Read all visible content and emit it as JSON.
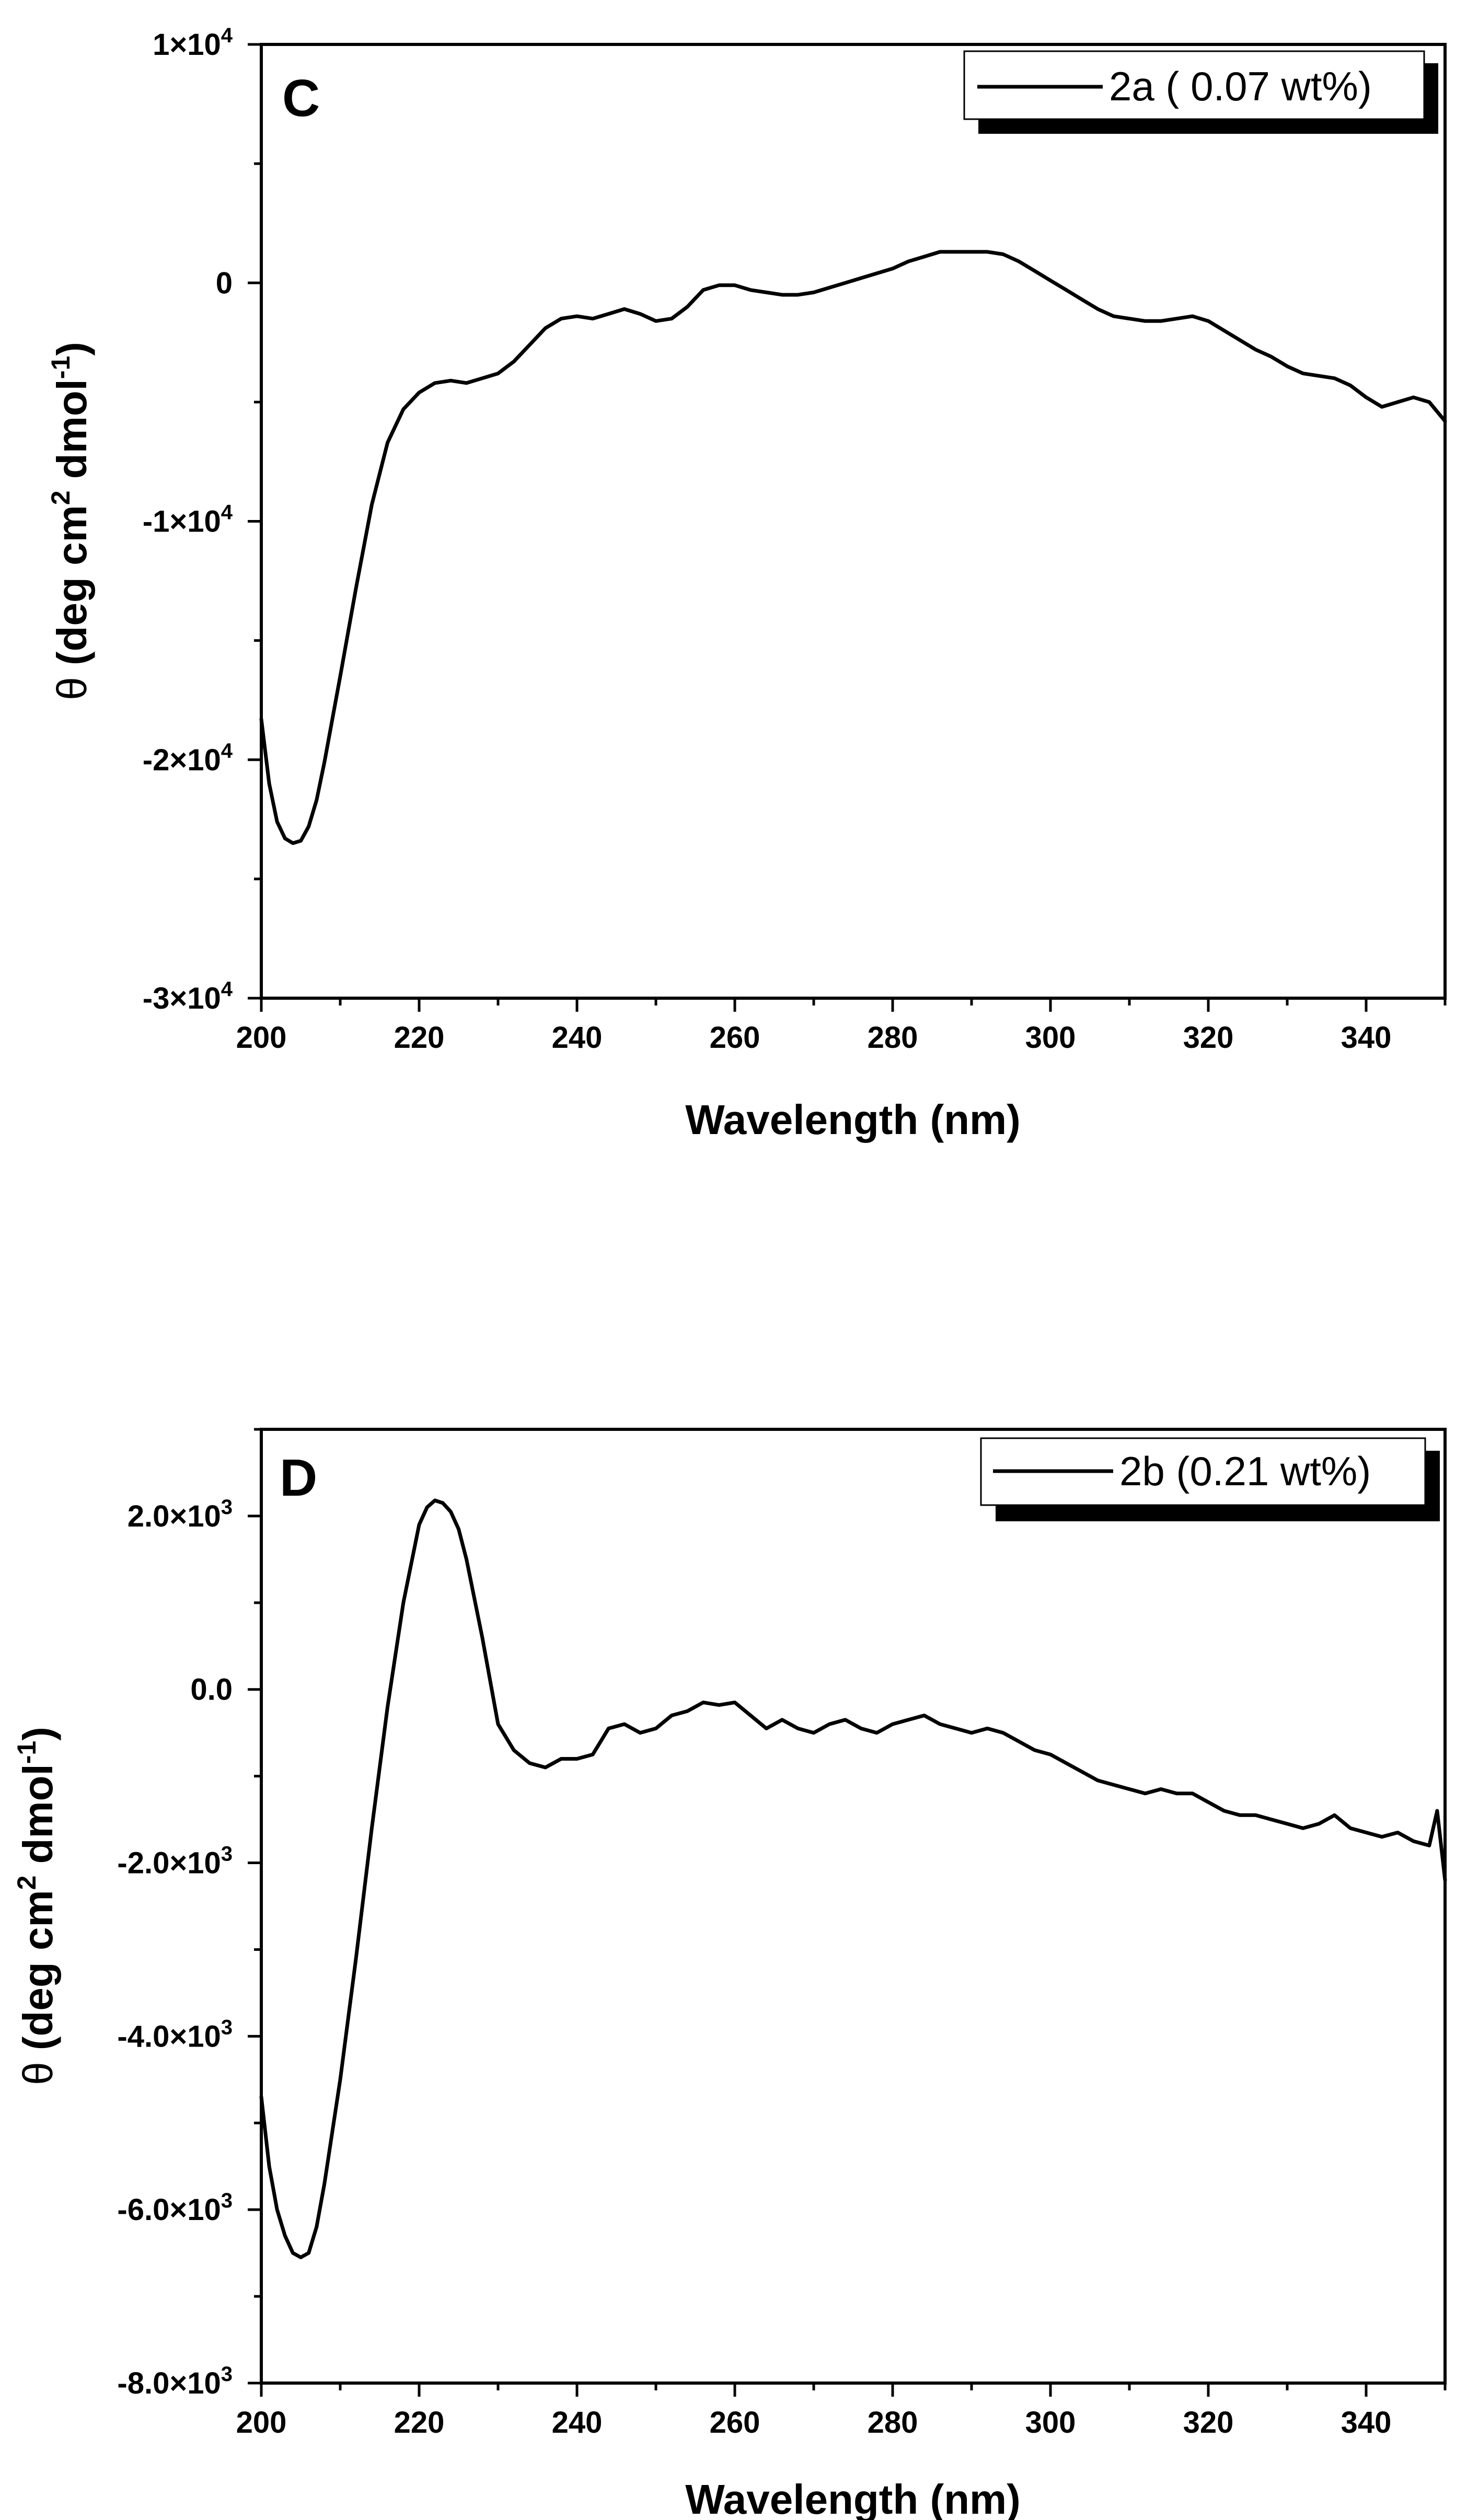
{
  "chart_data": [
    {
      "type": "line",
      "panel_label": "C",
      "title": "",
      "xlabel": "Wavelength (nm)",
      "ylabel": "θ (deg cm² dmol⁻¹)",
      "ylabel_parts": {
        "theta": "θ",
        "open": " (deg cm",
        "sup1": "2",
        "mid": " dmol",
        "sup2": "-1",
        "close": ")"
      },
      "xlim": [
        200,
        350
      ],
      "ylim": [
        -30000,
        10000
      ],
      "x_ticks": [
        {
          "value": 200,
          "label": "200"
        },
        {
          "value": 220,
          "label": "220"
        },
        {
          "value": 240,
          "label": "240"
        },
        {
          "value": 260,
          "label": "260"
        },
        {
          "value": 280,
          "label": "280"
        },
        {
          "value": 300,
          "label": "300"
        },
        {
          "value": 320,
          "label": "320"
        },
        {
          "value": 340,
          "label": "340"
        }
      ],
      "y_ticks": [
        {
          "value": 10000,
          "mantissa": "1",
          "exp": "4",
          "label": "1×10⁴"
        },
        {
          "value": 0,
          "mantissa": "0",
          "exp": "",
          "label": "0"
        },
        {
          "value": -10000,
          "mantissa": "-1",
          "exp": "4",
          "label": "-1×10⁴"
        },
        {
          "value": -20000,
          "mantissa": "-2",
          "exp": "4",
          "label": "-2×10⁴"
        },
        {
          "value": -30000,
          "mantissa": "-3",
          "exp": "4",
          "label": "-3×10⁴"
        }
      ],
      "legend": {
        "position": "top-right",
        "entries": [
          "2a ( 0.07 wt%)"
        ]
      },
      "series": [
        {
          "name": "2a ( 0.07 wt%)",
          "color": "#000000",
          "x": [
            200,
            201,
            202,
            203,
            204,
            205,
            206,
            207,
            208,
            210,
            212,
            214,
            216,
            218,
            220,
            222,
            224,
            226,
            228,
            230,
            232,
            234,
            236,
            238,
            240,
            242,
            244,
            246,
            248,
            250,
            252,
            254,
            256,
            258,
            260,
            262,
            264,
            266,
            268,
            270,
            272,
            274,
            276,
            278,
            280,
            282,
            284,
            286,
            288,
            290,
            292,
            294,
            296,
            298,
            300,
            302,
            304,
            306,
            308,
            310,
            312,
            314,
            316,
            318,
            320,
            322,
            324,
            326,
            328,
            330,
            332,
            334,
            336,
            338,
            340,
            342,
            344,
            346,
            348,
            350
          ],
          "y": [
            -18300,
            -21000,
            -22600,
            -23300,
            -23500,
            -23400,
            -22800,
            -21700,
            -20100,
            -16500,
            -12800,
            -9300,
            -6700,
            -5300,
            -4600,
            -4200,
            -4100,
            -4200,
            -4000,
            -3800,
            -3300,
            -2600,
            -1900,
            -1500,
            -1400,
            -1500,
            -1300,
            -1100,
            -1300,
            -1600,
            -1500,
            -1000,
            -300,
            -100,
            -100,
            -300,
            -400,
            -500,
            -500,
            -400,
            -200,
            0,
            200,
            400,
            600,
            900,
            1100,
            1300,
            1300,
            1300,
            1300,
            1200,
            900,
            500,
            100,
            -300,
            -700,
            -1100,
            -1400,
            -1500,
            -1600,
            -1600,
            -1500,
            -1400,
            -1600,
            -2000,
            -2400,
            -2800,
            -3100,
            -3500,
            -3800,
            -3900,
            -4000,
            -4300,
            -4800,
            -5200,
            -5000,
            -4800,
            -5000,
            -5800
          ]
        }
      ]
    },
    {
      "type": "line",
      "panel_label": "D",
      "title": "",
      "xlabel": "Wavelength (nm)",
      "ylabel": "θ (deg cm² dmol⁻¹)",
      "ylabel_parts": {
        "theta": "θ",
        "open": " (deg cm",
        "sup1": "2",
        "mid": " dmol",
        "sup2": "-1",
        "close": ")"
      },
      "xlim": [
        200,
        350
      ],
      "ylim": [
        -8000,
        3000
      ],
      "x_ticks": [
        {
          "value": 200,
          "label": "200"
        },
        {
          "value": 220,
          "label": "220"
        },
        {
          "value": 240,
          "label": "240"
        },
        {
          "value": 260,
          "label": "260"
        },
        {
          "value": 280,
          "label": "280"
        },
        {
          "value": 300,
          "label": "300"
        },
        {
          "value": 320,
          "label": "320"
        },
        {
          "value": 340,
          "label": "340"
        }
      ],
      "y_ticks": [
        {
          "value": 2000,
          "mantissa": "2.0",
          "exp": "3",
          "label": "2.0×10³"
        },
        {
          "value": 0,
          "mantissa": "0.0",
          "exp": "",
          "label": "0.0"
        },
        {
          "value": -2000,
          "mantissa": "-2.0",
          "exp": "3",
          "label": "-2.0×10³"
        },
        {
          "value": -4000,
          "mantissa": "-4.0",
          "exp": "3",
          "label": "-4.0×10³"
        },
        {
          "value": -6000,
          "mantissa": "-6.0",
          "exp": "3",
          "label": "-6.0×10³"
        },
        {
          "value": -8000,
          "mantissa": "-8.0",
          "exp": "3",
          "label": "-8.0×10³"
        }
      ],
      "legend": {
        "position": "top-right",
        "entries": [
          "2b (0.21 wt%)"
        ]
      },
      "series": [
        {
          "name": "2b (0.21 wt%)",
          "color": "#000000",
          "x": [
            200,
            201,
            202,
            203,
            204,
            205,
            206,
            207,
            208,
            210,
            212,
            214,
            216,
            218,
            220,
            221,
            222,
            223,
            224,
            225,
            226,
            228,
            230,
            232,
            234,
            236,
            238,
            240,
            242,
            244,
            246,
            248,
            250,
            252,
            254,
            256,
            258,
            260,
            262,
            264,
            266,
            268,
            270,
            272,
            274,
            276,
            278,
            280,
            282,
            284,
            286,
            288,
            290,
            292,
            294,
            296,
            298,
            300,
            302,
            304,
            306,
            308,
            310,
            312,
            314,
            316,
            318,
            320,
            322,
            324,
            326,
            328,
            330,
            332,
            334,
            336,
            338,
            340,
            342,
            344,
            346,
            348,
            349,
            350
          ],
          "y": [
            -4700,
            -5500,
            -6000,
            -6300,
            -6500,
            -6550,
            -6500,
            -6200,
            -5700,
            -4500,
            -3100,
            -1600,
            -200,
            1000,
            1900,
            2100,
            2180,
            2150,
            2050,
            1850,
            1500,
            600,
            -400,
            -700,
            -850,
            -900,
            -800,
            -800,
            -750,
            -450,
            -400,
            -500,
            -450,
            -300,
            -250,
            -150,
            -180,
            -150,
            -300,
            -450,
            -350,
            -450,
            -500,
            -400,
            -350,
            -450,
            -500,
            -400,
            -350,
            -300,
            -400,
            -450,
            -500,
            -450,
            -500,
            -600,
            -700,
            -750,
            -850,
            -950,
            -1050,
            -1100,
            -1150,
            -1200,
            -1150,
            -1200,
            -1200,
            -1300,
            -1400,
            -1450,
            -1450,
            -1500,
            -1550,
            -1600,
            -1550,
            -1450,
            -1600,
            -1650,
            -1700,
            -1650,
            -1750,
            -1800,
            -1400,
            -2200
          ]
        }
      ]
    }
  ]
}
